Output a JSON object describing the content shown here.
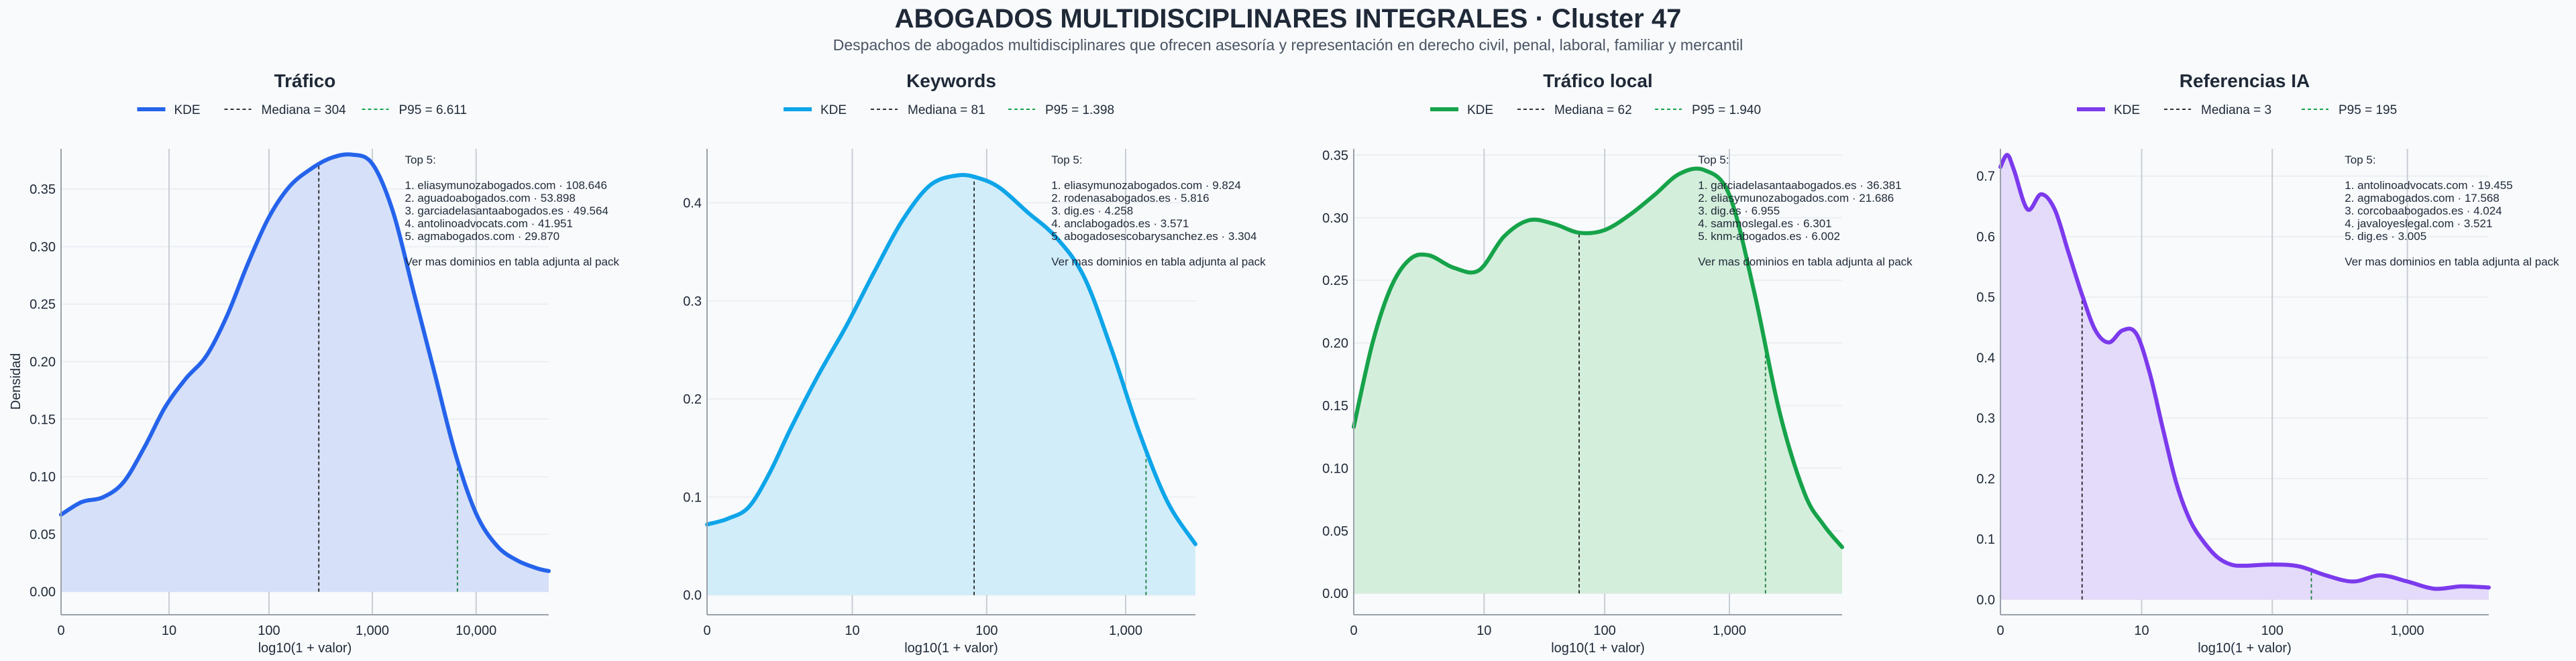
{
  "header": {
    "title": "ABOGADOS MULTIDISCIPLINARES INTEGRALES · Cluster 47",
    "subtitle": "Despachos de abogados multidisciplinares que ofrecen asesoría y representación en derecho civil, penal, laboral, familiar y mercantil"
  },
  "shared": {
    "ylabel": "Densidad",
    "xlabel": "log10(1 + valor)",
    "top_title": "Top 5:",
    "top_footer": "Ver mas dominios en tabla adjunta al pack",
    "legend_kde": "KDE"
  },
  "chart_data": [
    {
      "type": "area",
      "title": "Tráfico",
      "color": "#2563eb",
      "fill": "#d6e0f8",
      "xlabel": "log10(1 + valor)",
      "ylabel": "Densidad",
      "xlim": [
        0,
        4.7
      ],
      "ylim": [
        -0.02,
        0.385
      ],
      "xticks": [
        {
          "v": 0,
          "label": "0"
        },
        {
          "v": 1.041,
          "label": "10"
        },
        {
          "v": 2.004,
          "label": "100"
        },
        {
          "v": 3,
          "label": "1,000"
        },
        {
          "v": 4,
          "label": "10,000"
        }
      ],
      "yticks": [
        "0.00",
        "0.05",
        "0.10",
        "0.15",
        "0.20",
        "0.25",
        "0.30",
        "0.35"
      ],
      "yticks_values": [
        0,
        0.05,
        0.1,
        0.15,
        0.2,
        0.25,
        0.3,
        0.35
      ],
      "x": [
        0,
        0.2,
        0.4,
        0.6,
        0.8,
        1.0,
        1.2,
        1.4,
        1.6,
        1.8,
        2.0,
        2.2,
        2.4,
        2.6,
        2.8,
        3.0,
        3.2,
        3.4,
        3.6,
        3.8,
        4.0,
        4.2,
        4.4,
        4.6,
        4.7
      ],
      "y": [
        0.067,
        0.078,
        0.082,
        0.095,
        0.125,
        0.16,
        0.185,
        0.205,
        0.24,
        0.285,
        0.325,
        0.352,
        0.367,
        0.377,
        0.38,
        0.372,
        0.33,
        0.26,
        0.19,
        0.12,
        0.068,
        0.04,
        0.027,
        0.02,
        0.018
      ],
      "median": {
        "x": 2.484,
        "label": "Mediana = 304"
      },
      "p95": {
        "x": 3.82,
        "label": "P95 = 6.611"
      },
      "top5": [
        "1. eliasymunozabogados.com · 108.646",
        "2. aguadoabogados.com · 53.898",
        "3. garciadelasantaabogados.es · 49.564",
        "4. antolinoadvocats.com · 41.951",
        "5. agmabogados.com · 29.870"
      ]
    },
    {
      "type": "area",
      "title": "Keywords",
      "color": "#0ea5e9",
      "fill": "#d2edfa",
      "xlabel": "log10(1 + valor)",
      "ylabel": "",
      "xlim": [
        0,
        3.5
      ],
      "ylim": [
        -0.02,
        0.455
      ],
      "xticks": [
        {
          "v": 0,
          "label": "0"
        },
        {
          "v": 1.041,
          "label": "10"
        },
        {
          "v": 2.004,
          "label": "100"
        },
        {
          "v": 3,
          "label": "1,000"
        }
      ],
      "yticks": [
        "0.0",
        "0.1",
        "0.2",
        "0.3",
        "0.4"
      ],
      "yticks_values": [
        0,
        0.1,
        0.2,
        0.3,
        0.4
      ],
      "x": [
        0,
        0.15,
        0.3,
        0.45,
        0.6,
        0.8,
        1.0,
        1.2,
        1.4,
        1.6,
        1.8,
        1.95,
        2.1,
        2.3,
        2.5,
        2.7,
        2.9,
        3.1,
        3.3,
        3.5
      ],
      "y": [
        0.072,
        0.078,
        0.09,
        0.125,
        0.17,
        0.225,
        0.275,
        0.33,
        0.382,
        0.418,
        0.428,
        0.425,
        0.415,
        0.39,
        0.365,
        0.325,
        0.25,
        0.165,
        0.095,
        0.052
      ],
      "median": {
        "x": 1.914,
        "label": "Mediana = 81"
      },
      "p95": {
        "x": 3.146,
        "label": "P95 = 1.398"
      },
      "top5": [
        "1. eliasymunozabogados.com · 9.824",
        "2. rodenasabogados.es · 5.816",
        "3. dig.es · 4.258",
        "4. anclabogados.es · 3.571",
        "5. abogadosescobarysanchez.es · 3.304"
      ]
    },
    {
      "type": "area",
      "title": "Tráfico local",
      "color": "#16a34a",
      "fill": "#d4eedc",
      "xlabel": "log10(1 + valor)",
      "ylabel": "",
      "xlim": [
        0,
        3.9
      ],
      "ylim": [
        -0.017,
        0.355
      ],
      "xticks": [
        {
          "v": 0,
          "label": "0"
        },
        {
          "v": 1.041,
          "label": "10"
        },
        {
          "v": 2.004,
          "label": "100"
        },
        {
          "v": 3,
          "label": "1,000"
        }
      ],
      "yticks": [
        "0.00",
        "0.05",
        "0.10",
        "0.15",
        "0.20",
        "0.25",
        "0.30",
        "0.35"
      ],
      "yticks_values": [
        0,
        0.05,
        0.1,
        0.15,
        0.2,
        0.25,
        0.3,
        0.35
      ],
      "x": [
        0,
        0.15,
        0.3,
        0.45,
        0.6,
        0.8,
        1.0,
        1.2,
        1.4,
        1.6,
        1.8,
        2.0,
        2.2,
        2.4,
        2.6,
        2.8,
        3.0,
        3.2,
        3.4,
        3.6,
        3.75,
        3.9
      ],
      "y": [
        0.133,
        0.2,
        0.245,
        0.267,
        0.27,
        0.26,
        0.258,
        0.285,
        0.298,
        0.295,
        0.288,
        0.29,
        0.302,
        0.318,
        0.335,
        0.338,
        0.318,
        0.24,
        0.145,
        0.08,
        0.055,
        0.037
      ],
      "median": {
        "x": 1.8,
        "label": "Mediana = 62"
      },
      "p95": {
        "x": 3.288,
        "label": "P95 = 1.940"
      },
      "top5": [
        "1. garciadelasantaabogados.es · 36.381",
        "2. eliasymunozabogados.com · 21.686",
        "3. dig.es · 6.955",
        "4. sammoslegal.es · 6.301",
        "5. knm-abogados.es · 6.002"
      ]
    },
    {
      "type": "area",
      "title": "Referencias IA",
      "color": "#7c3aed",
      "fill": "#e4dafa",
      "xlabel": "log10(1 + valor)",
      "ylabel": "",
      "xlim": [
        0,
        3.6
      ],
      "ylim": [
        -0.025,
        0.745
      ],
      "xticks": [
        {
          "v": 0,
          "label": "0"
        },
        {
          "v": 1.041,
          "label": "10"
        },
        {
          "v": 2.004,
          "label": "100"
        },
        {
          "v": 3,
          "label": "1,000"
        }
      ],
      "yticks": [
        "0.0",
        "0.1",
        "0.2",
        "0.3",
        "0.4",
        "0.5",
        "0.6",
        "0.7"
      ],
      "yticks_values": [
        0,
        0.1,
        0.2,
        0.3,
        0.4,
        0.5,
        0.6,
        0.7
      ],
      "x": [
        0,
        0.05,
        0.1,
        0.2,
        0.3,
        0.4,
        0.5,
        0.6,
        0.7,
        0.8,
        0.9,
        1.0,
        1.1,
        1.2,
        1.3,
        1.4,
        1.5,
        1.6,
        1.7,
        1.8,
        2.0,
        2.2,
        2.4,
        2.6,
        2.8,
        3.0,
        3.2,
        3.4,
        3.6
      ],
      "y": [
        0.715,
        0.735,
        0.71,
        0.645,
        0.67,
        0.645,
        0.575,
        0.505,
        0.445,
        0.425,
        0.445,
        0.44,
        0.375,
        0.28,
        0.19,
        0.13,
        0.095,
        0.07,
        0.058,
        0.056,
        0.058,
        0.055,
        0.04,
        0.03,
        0.04,
        0.03,
        0.018,
        0.022,
        0.02
      ],
      "median": {
        "x": 0.602,
        "label": "Mediana = 3"
      },
      "p95": {
        "x": 2.292,
        "label": "P95 = 195"
      },
      "top5": [
        "1. antolinoadvocats.com · 19.455",
        "2. agmabogados.com · 17.568",
        "3. corcobaabogados.es · 4.024",
        "4. javaloyeslegal.com · 3.521",
        "5. dig.es · 3.005"
      ]
    }
  ]
}
